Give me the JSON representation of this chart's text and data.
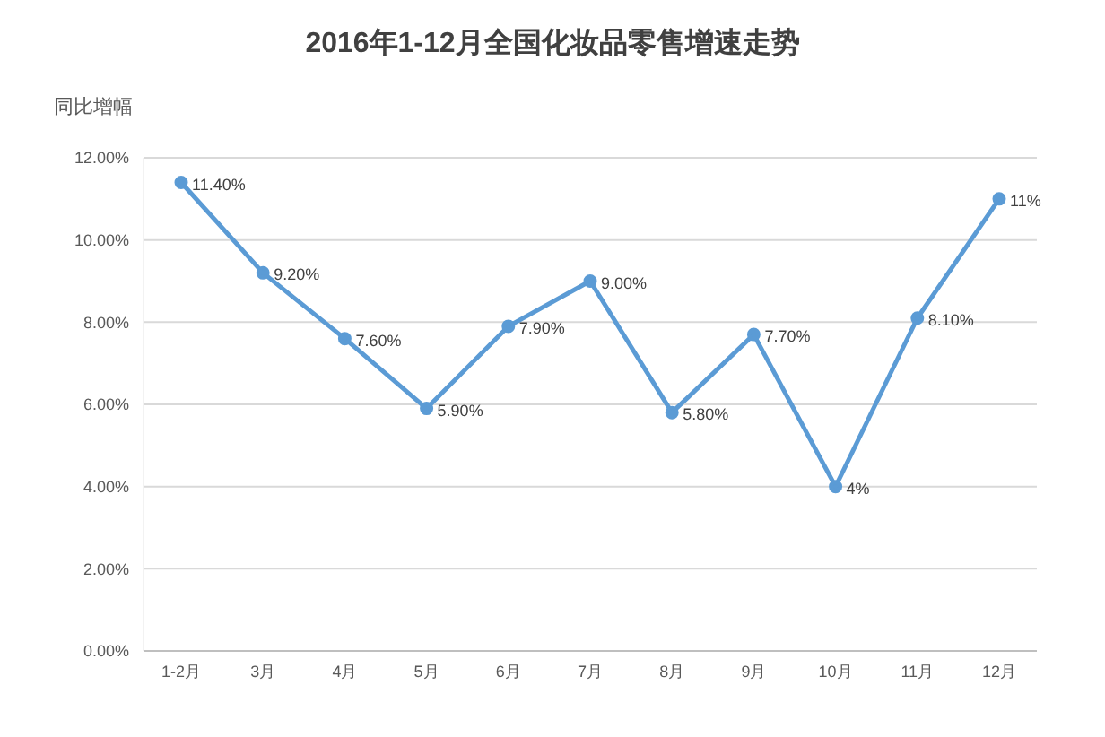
{
  "chart_data": {
    "type": "line",
    "title": "2016年1-12月全国化妆品零售增速走势",
    "ylabel": "同比增幅",
    "categories": [
      "1-2月",
      "3月",
      "4月",
      "5月",
      "6月",
      "7月",
      "8月",
      "9月",
      "10月",
      "11月",
      "12月"
    ],
    "series": [
      {
        "color": "#5b9bd5",
        "values": [
          11.4,
          9.2,
          7.6,
          5.9,
          7.9,
          9.0,
          5.8,
          7.7,
          4,
          8.1,
          11
        ],
        "value_labels": [
          "11.40%",
          "9.20%",
          "7.60%",
          "5.90%",
          "7.90%",
          "9.00%",
          "5.80%",
          "7.70%",
          "4%",
          "8.10%",
          "11%"
        ]
      }
    ],
    "ylim": [
      0,
      12
    ],
    "yticks": [
      {
        "value": 0,
        "label": "0.00%"
      },
      {
        "value": 2,
        "label": "2.00%"
      },
      {
        "value": 4,
        "label": "4.00%"
      },
      {
        "value": 6,
        "label": "6.00%"
      },
      {
        "value": 8,
        "label": "8.00%"
      },
      {
        "value": 10,
        "label": "10.00%"
      },
      {
        "value": 12,
        "label": "12.00%"
      }
    ],
    "grid": "y",
    "marker": "circle",
    "line_style": "solid",
    "legend": false
  }
}
